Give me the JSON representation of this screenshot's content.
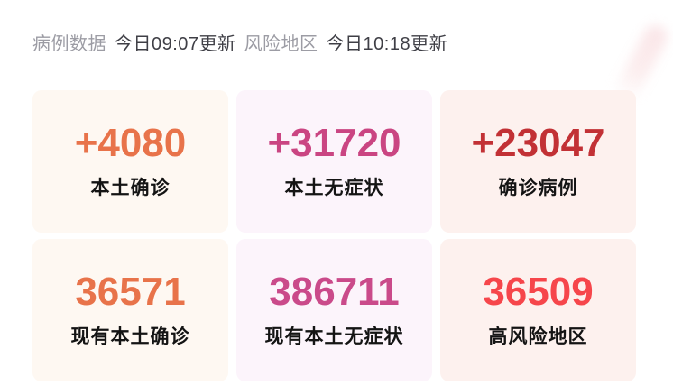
{
  "header": {
    "case_data_label": "病例数据",
    "case_data_updated": "今日09:07更新",
    "risk_area_label": "风险地区",
    "risk_area_updated": "今日10:18更新"
  },
  "colors": {
    "header_light": "#9c9ca4",
    "header_dark": "#3f3f46",
    "label_text": "#141414",
    "orange": "#e8734a",
    "pink": "#ca4582",
    "dark_red": "#c23135",
    "magenta": "#ca4a8a",
    "bright_red": "#f6464b"
  },
  "cards": [
    {
      "value": "+4080",
      "label": "本土确诊",
      "value_color": "#e8734a",
      "bg": "#fef8f2"
    },
    {
      "value": "+31720",
      "label": "本土无症状",
      "value_color": "#ca4582",
      "bg": "#fcf4fb"
    },
    {
      "value": "+23047",
      "label": "确诊病例",
      "value_color": "#c23135",
      "bg": "#fdf1ee"
    },
    {
      "value": "36571",
      "label": "现有本土确诊",
      "value_color": "#e8734a",
      "bg": "#fef8f2"
    },
    {
      "value": "386711",
      "label": "现有本土无症状",
      "value_color": "#ca4a8a",
      "bg": "#fcf4fb"
    },
    {
      "value": "36509",
      "label": "高风险地区",
      "value_color": "#f6464b",
      "bg": "#fdf1ee"
    }
  ]
}
